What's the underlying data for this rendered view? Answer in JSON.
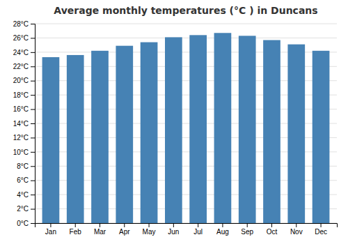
{
  "chart_data": {
    "type": "bar",
    "title": "Average monthly temperatures (°C ) in Duncans",
    "categories": [
      "Jan",
      "Feb",
      "Mar",
      "Apr",
      "May",
      "Jun",
      "Jul",
      "Aug",
      "Sep",
      "Oct",
      "Nov",
      "Dec"
    ],
    "values": [
      23.3,
      23.6,
      24.2,
      24.9,
      25.4,
      26.1,
      26.4,
      26.7,
      26.3,
      25.7,
      25.1,
      24.2
    ],
    "ylim": [
      0,
      28
    ],
    "yticks": [
      {
        "value": 0,
        "label": "0°C"
      },
      {
        "value": 2,
        "label": "2°C"
      },
      {
        "value": 4,
        "label": "4°C"
      },
      {
        "value": 6,
        "label": "6°C"
      },
      {
        "value": 8,
        "label": "8°C"
      },
      {
        "value": 10,
        "label": "10°C"
      },
      {
        "value": 12,
        "label": "12°C"
      },
      {
        "value": 14,
        "label": "14°C"
      },
      {
        "value": 16,
        "label": "16°C"
      },
      {
        "value": 18,
        "label": "18°C"
      },
      {
        "value": 20,
        "label": "20°C"
      },
      {
        "value": 22,
        "label": "22°C"
      },
      {
        "value": 24,
        "label": "24°C"
      },
      {
        "value": 26,
        "label": "26°C"
      },
      {
        "value": 28,
        "label": "28°C"
      }
    ],
    "grid": true
  }
}
